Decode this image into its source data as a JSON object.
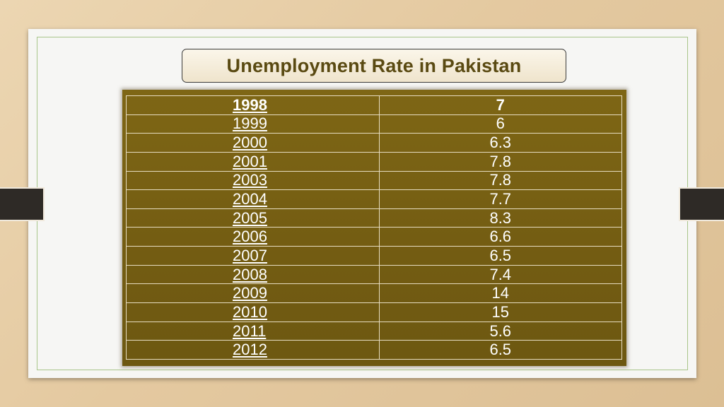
{
  "slide": {
    "title": "Unemployment Rate in Pakistan"
  },
  "table": {
    "rows": [
      {
        "year": "1998",
        "rate": "7"
      },
      {
        "year": "1999",
        "rate": "6"
      },
      {
        "year": "2000",
        "rate": "6.3"
      },
      {
        "year": "2001",
        "rate": "7.8"
      },
      {
        "year": "2003",
        "rate": "7.8"
      },
      {
        "year": "2004",
        "rate": "7.7"
      },
      {
        "year": "2005",
        "rate": "8.3"
      },
      {
        "year": "2006",
        "rate": "6.6"
      },
      {
        "year": "2007",
        "rate": "6.5"
      },
      {
        "year": "2008",
        "rate": "7.4"
      },
      {
        "year": "2009",
        "rate": "14"
      },
      {
        "year": "2010",
        "rate": "15"
      },
      {
        "year": "2011",
        "rate": "5.6"
      },
      {
        "year": "2012",
        "rate": "6.5"
      }
    ]
  },
  "colors": {
    "table_fill": "#7a6314",
    "title_text": "#5a4a12",
    "tab_dark": "#2e2a26"
  }
}
